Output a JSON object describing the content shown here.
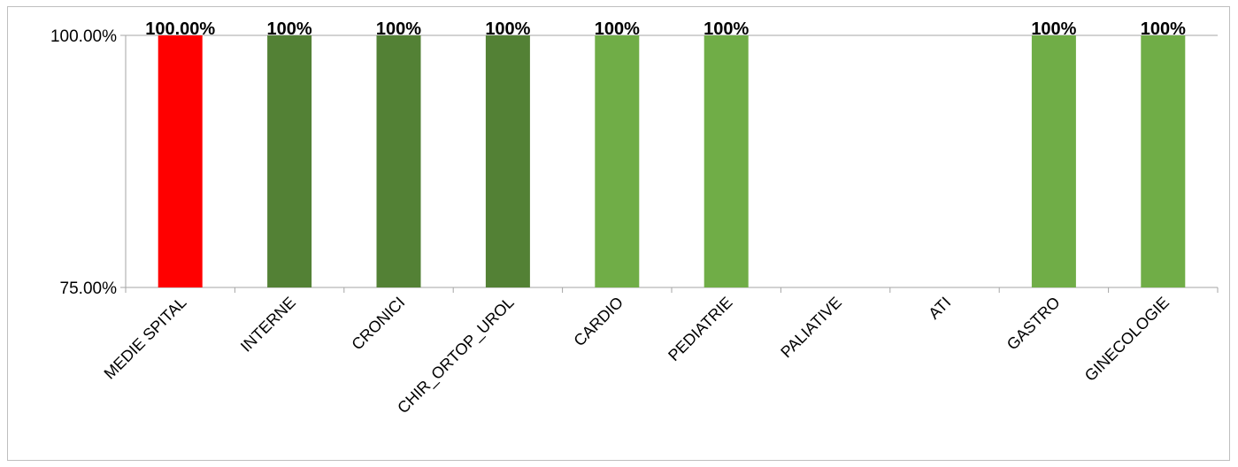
{
  "chart_data": {
    "type": "bar",
    "categories": [
      "MEDIE SPITAL",
      "INTERNE",
      "CRONICI",
      "CHIR_ORTOP_UROL",
      "CARDIO",
      "PEDIATRIE",
      "PALIATIVE",
      "ATI",
      "GASTRO",
      "GINECOLOGIE"
    ],
    "values": [
      100,
      100,
      100,
      100,
      100,
      100,
      null,
      null,
      100,
      100
    ],
    "data_labels": [
      "100.00%",
      "100%",
      "100%",
      "100%",
      "100%",
      "100%",
      "",
      "",
      "100%",
      "100%"
    ],
    "bar_colors": [
      "#ff0000",
      "#538135",
      "#538135",
      "#538135",
      "#70ad47",
      "#70ad47",
      "#70ad47",
      "#70ad47",
      "#70ad47",
      "#70ad47"
    ],
    "y_ticks": [
      {
        "value": 75,
        "label": "75.00%"
      },
      {
        "value": 100,
        "label": "100.00%"
      }
    ],
    "ylim": [
      75,
      100
    ],
    "title": "",
    "xlabel": "",
    "ylabel": "",
    "grid": false,
    "legend": "none"
  },
  "colors": {
    "axis": "#a6a6a6",
    "frame": "#bfbfbf"
  }
}
